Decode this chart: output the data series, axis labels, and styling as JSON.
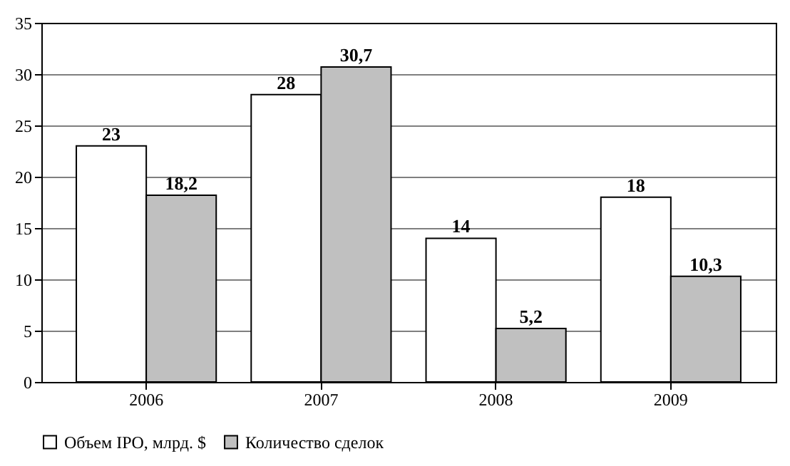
{
  "chart_data": {
    "type": "bar",
    "categories": [
      "2006",
      "2007",
      "2008",
      "2009"
    ],
    "series": [
      {
        "name": "Объем IPO, млрд. $",
        "color": "#ffffff",
        "values": [
          23,
          28,
          14,
          18
        ],
        "value_labels": [
          "23",
          "28",
          "14",
          "18"
        ]
      },
      {
        "name": "Количество сделок",
        "color": "#c0c0c0",
        "values": [
          18.2,
          30.7,
          5.2,
          10.3
        ],
        "value_labels": [
          "18,2",
          "30,7",
          "5,2",
          "10,3"
        ]
      }
    ],
    "ylim": [
      0,
      35
    ],
    "yticks": [
      0,
      5,
      10,
      15,
      20,
      25,
      30,
      35
    ],
    "grid": "y",
    "legend": "bottom"
  }
}
